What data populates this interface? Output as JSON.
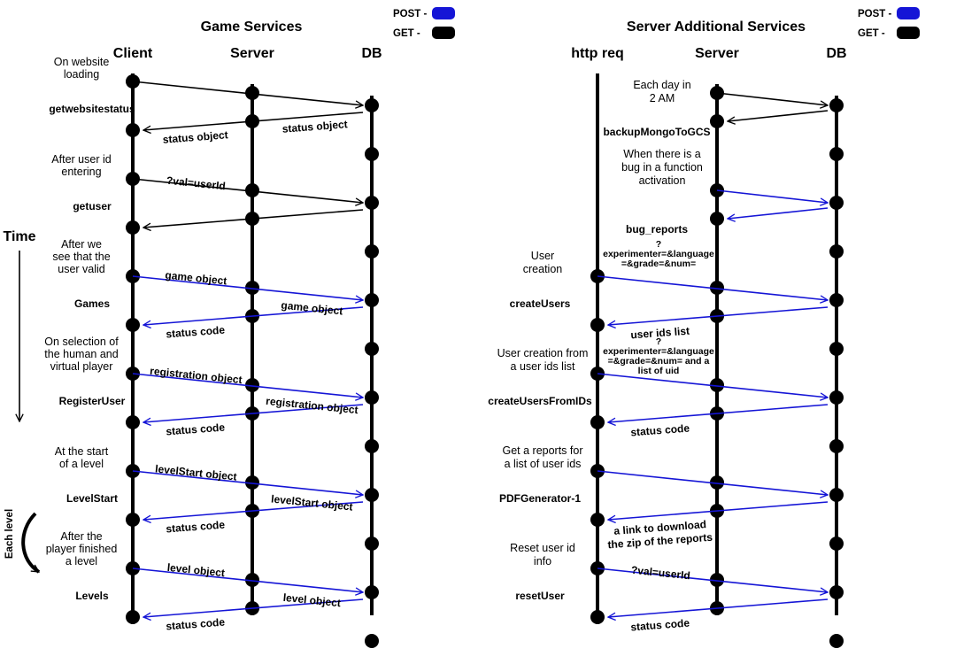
{
  "left": {
    "title": "Game Services",
    "columns": [
      "Client",
      "Server",
      "DB"
    ],
    "legend": {
      "post": "POST -",
      "get": "GET -",
      "post_color": "#1515d6",
      "get_color": "#000000"
    },
    "steps": [
      {
        "desc": [
          "On website",
          "loading"
        ],
        "fname": "getwebsitestatus",
        "req_label": "",
        "fwd_label": "",
        "db_label": "status object",
        "resp_label": "status object",
        "kind": "get"
      },
      {
        "desc": [
          "After user id",
          "entering"
        ],
        "fname": "getuser",
        "req_label": "?val=userId",
        "fwd_label": "",
        "db_label": "",
        "resp_label": "",
        "kind": "get"
      },
      {
        "desc": [
          "After we",
          "see that the",
          "user valid"
        ],
        "fname": "Games",
        "req_label": "game object",
        "fwd_label": "game object",
        "db_label": "",
        "resp_label": "status code",
        "kind": "post"
      },
      {
        "desc": [
          "On selection of",
          "the human and",
          "virtual player"
        ],
        "fname": "RegisterUser",
        "req_label": "registration object",
        "fwd_label": "registration object",
        "db_label": "",
        "resp_label": "status code",
        "kind": "post"
      },
      {
        "desc": [
          "At the start",
          "of a level"
        ],
        "fname": "LevelStart",
        "req_label": "levelStart object",
        "fwd_label": "levelStart object",
        "db_label": "",
        "resp_label": "status code",
        "kind": "post"
      },
      {
        "desc": [
          "After the",
          "player finished",
          "a level"
        ],
        "fname": "Levels",
        "req_label": "level object",
        "fwd_label": "level object",
        "db_label": "",
        "resp_label": "status code",
        "kind": "post"
      }
    ],
    "time_label": "Time",
    "each_level_label": "Each level"
  },
  "right": {
    "title": "Server Additional  Services",
    "columns": [
      "http req",
      "Server",
      "DB"
    ],
    "legend": {
      "post": "POST -",
      "get": "GET -",
      "post_color": "#1515d6",
      "get_color": "#000000"
    },
    "steps": [
      {
        "desc": [
          "Each day in",
          "2 AM"
        ],
        "fname": "backupMongoToGCS",
        "kind": "get",
        "source": "server",
        "req_lines": [],
        "resp_lines": []
      },
      {
        "desc": [
          "When there is a",
          "bug in a function",
          "activation"
        ],
        "fname": "bug_reports",
        "kind": "post",
        "source": "server",
        "req_lines": [],
        "resp_lines": []
      },
      {
        "desc": [
          "User",
          "creation"
        ],
        "fname": "createUsers",
        "kind": "post",
        "source": "http",
        "req_lines": [
          "?",
          "experimenter=&language",
          "=&grade=&num="
        ],
        "resp_lines": [
          "user ids list"
        ]
      },
      {
        "desc": [
          "User creation from",
          "a user ids list"
        ],
        "fname": "createUsersFromIDs",
        "kind": "post",
        "source": "http",
        "req_lines": [
          "?",
          "experimenter=&language",
          "=&grade=&num=  and a",
          "list of uid"
        ],
        "resp_lines": [
          "status code"
        ]
      },
      {
        "desc": [
          "Get a reports for",
          "a list of user ids"
        ],
        "fname": "PDFGenerator-1",
        "kind": "post",
        "source": "http",
        "req_lines": [],
        "resp_lines": [
          "a link to download",
          "the zip of the reports"
        ]
      },
      {
        "desc": [
          "Reset user id",
          "info"
        ],
        "fname": "resetUser",
        "kind": "post",
        "source": "http",
        "req_lines": [
          "?val=userId"
        ],
        "resp_lines": [
          "status code"
        ]
      }
    ]
  }
}
